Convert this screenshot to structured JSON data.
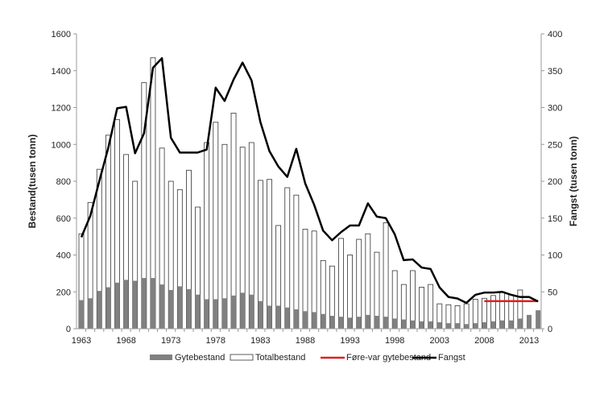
{
  "chart_data": {
    "type": "bar",
    "title": "",
    "xlabel": "",
    "ylabel": "Bestand(tusen tonn)",
    "y2label": "Fangst (tusen tonn)",
    "ylim": [
      0,
      1600
    ],
    "y2lim": [
      0,
      400
    ],
    "yticks": [
      0,
      200,
      400,
      600,
      800,
      1000,
      1200,
      1400,
      1600
    ],
    "y2ticks": [
      0,
      50,
      100,
      150,
      200,
      250,
      300,
      350,
      400
    ],
    "xtick_labels": [
      "1963",
      "1968",
      "1973",
      "1978",
      "1983",
      "1988",
      "1993",
      "1998",
      "2003",
      "2008",
      "2013"
    ],
    "grid": false,
    "legend_placement": "bottom",
    "colors": {
      "gytebestand": "#808080",
      "totalbestand": "#ffffff",
      "fore_var": "#e02020",
      "fangst": "#000000"
    },
    "x": [
      1963,
      1964,
      1965,
      1966,
      1967,
      1968,
      1969,
      1970,
      1971,
      1972,
      1973,
      1974,
      1975,
      1976,
      1977,
      1978,
      1979,
      1980,
      1981,
      1982,
      1983,
      1984,
      1985,
      1986,
      1987,
      1988,
      1989,
      1990,
      1991,
      1992,
      1993,
      1994,
      1995,
      1996,
      1997,
      1998,
      1999,
      2000,
      2001,
      2002,
      2003,
      2004,
      2005,
      2006,
      2007,
      2008,
      2009,
      2010,
      2011,
      2012,
      2013,
      2014
    ],
    "series": [
      {
        "name": "Gytebestand",
        "type": "bar",
        "axis": "left",
        "values": [
          155,
          165,
          205,
          225,
          250,
          265,
          260,
          275,
          275,
          240,
          210,
          230,
          215,
          185,
          160,
          160,
          165,
          180,
          195,
          185,
          150,
          125,
          125,
          115,
          105,
          95,
          90,
          80,
          70,
          65,
          60,
          65,
          75,
          70,
          65,
          55,
          50,
          45,
          40,
          40,
          35,
          30,
          30,
          25,
          30,
          35,
          40,
          45,
          45,
          55,
          75,
          100
        ]
      },
      {
        "name": "Totalbestand",
        "type": "bar",
        "axis": "left",
        "values": [
          515,
          685,
          865,
          1050,
          1135,
          945,
          800,
          1335,
          1470,
          980,
          800,
          755,
          860,
          660,
          1010,
          1120,
          1000,
          1170,
          985,
          1010,
          805,
          810,
          560,
          765,
          725,
          540,
          530,
          370,
          340,
          490,
          400,
          485,
          515,
          415,
          575,
          315,
          240,
          315,
          225,
          240,
          135,
          130,
          125,
          135,
          160,
          165,
          180,
          200,
          185,
          210,
          null,
          null
        ]
      },
      {
        "name": "Føre-var gytebestand",
        "type": "line",
        "axis": "left",
        "x": [
          2008,
          2014
        ],
        "values": [
          150,
          150
        ]
      },
      {
        "name": "Fangst",
        "type": "line",
        "axis": "right",
        "values": [
          124,
          153,
          200,
          245,
          299,
          301,
          238,
          265,
          354,
          367,
          259,
          239,
          239,
          239,
          243,
          327,
          309,
          338,
          361,
          337,
          280,
          241,
          220,
          206,
          244,
          197,
          168,
          133,
          120,
          131,
          140,
          140,
          170,
          152,
          150,
          128,
          93,
          94,
          83,
          81,
          56,
          43,
          41,
          35,
          46,
          49,
          49,
          50,
          46,
          43,
          43,
          37
        ]
      }
    ]
  }
}
